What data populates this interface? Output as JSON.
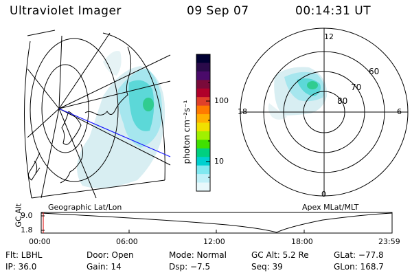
{
  "header": {
    "instrument": "Ultraviolet Imager",
    "date": "09 Sep 07",
    "time": "00:14:31 UT"
  },
  "colorbar": {
    "unit_label": "photon cm⁻²s⁻¹",
    "ticks": [
      "100",
      "10"
    ],
    "colors": [
      "#000033",
      "#2a0a4a",
      "#4a0a6a",
      "#7a0a3a",
      "#b0002a",
      "#e0402a",
      "#ff7a00",
      "#ffb000",
      "#f0e000",
      "#a0f000",
      "#40e000",
      "#00d080",
      "#00d0d0",
      "#80e8f0",
      "#c0f0f8",
      "#e8f8fb"
    ]
  },
  "geo_map": {
    "label": "Geographic Lat/Lon"
  },
  "polar_map": {
    "label": "Apex MLat/MLT",
    "mlt_labels": {
      "top": "12",
      "left": "18",
      "right": "6",
      "bottom": "0"
    },
    "lat_labels": [
      "60",
      "70",
      "80"
    ]
  },
  "altitude_plot": {
    "ylabel": "GC Alt",
    "yticks": [
      "9.0",
      "1.8"
    ],
    "xticks": [
      "00:00",
      "06:00",
      "12:00",
      "18:00",
      "23:59"
    ]
  },
  "status": {
    "flt": "Flt: LBHL",
    "door": "Door: Open",
    "mode": "Mode: Normal",
    "gc_alt": "GC Alt: 5.2 Re",
    "glat": "GLat: −77.8",
    "ip": "IP: 36.0",
    "gain": "Gain: 14",
    "dsp": "Dsp:    −7.5",
    "seq": "Seq: 39",
    "glon": "GLon: 168.7"
  }
}
